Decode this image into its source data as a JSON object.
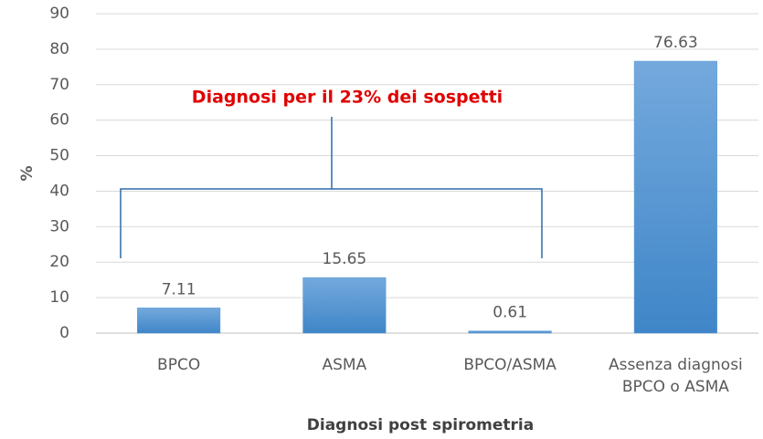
{
  "chart_data": {
    "type": "bar",
    "categories": [
      "BPCO",
      "ASMA",
      "BPCO/ASMA",
      "Assenza diagnosi\nBPCO o ASMA"
    ],
    "values": [
      7.11,
      15.65,
      0.61,
      76.63
    ],
    "color": "#5b9bd5",
    "ylim": [
      0,
      90
    ],
    "yticks": [
      0,
      10,
      20,
      30,
      40,
      50,
      60,
      70,
      80,
      90
    ],
    "grid": true,
    "y_label": "%",
    "x_label": "Diagnosi post spirometria",
    "annotation": "Diagnosi per il 23% dei sospetti"
  }
}
